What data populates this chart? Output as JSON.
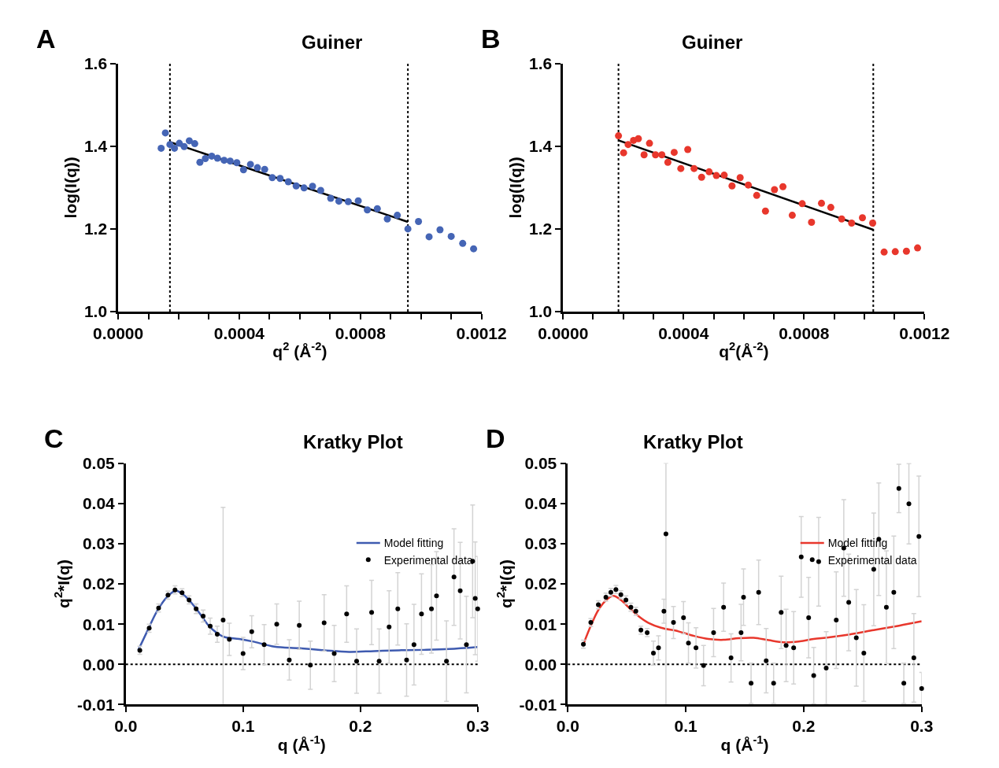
{
  "chart_data": [
    {
      "type": "scatter",
      "title": "Guiner",
      "xlabel": "q$^{2}$ (Å$^{-2}$)",
      "ylabel": "log(I(q))",
      "annotations": [
        "A"
      ],
      "xlim": [
        0,
        0.0012
      ],
      "xticks": [
        {
          "value": 0,
          "label": "0.0000"
        },
        {
          "value": 0.0001,
          "label": null
        },
        {
          "value": 0.0002,
          "label": null
        },
        {
          "value": 0.0003,
          "label": null
        },
        {
          "value": 0.0004,
          "label": "0.0004"
        },
        {
          "value": 0.0005,
          "label": null
        },
        {
          "value": 0.0006,
          "label": null
        },
        {
          "value": 0.0007,
          "label": null
        },
        {
          "value": 0.0008,
          "label": "0.0008"
        },
        {
          "value": 0.0009,
          "label": null
        },
        {
          "value": 0.001,
          "label": null
        },
        {
          "value": 0.0011,
          "label": null
        },
        {
          "value": 0.0012,
          "label": "0.0012"
        }
      ],
      "ylim": [
        1.0,
        1.6
      ],
      "yticks": [
        {
          "value": 1.0,
          "label": "1.0"
        },
        {
          "value": 1.2,
          "label": "1.2"
        },
        {
          "value": 1.4,
          "label": "1.4"
        },
        {
          "value": 1.6,
          "label": "1.6"
        }
      ],
      "grid": false,
      "legend": false,
      "ref_lines": [
        {
          "axis": "x",
          "value": 0.000171,
          "color": "#000000",
          "line_style": "dotted"
        },
        {
          "axis": "x",
          "value": 0.000957,
          "color": "#000000",
          "line_style": "dotted"
        }
      ],
      "series": [
        {
          "marker": "circle",
          "color": "#4565b5",
          "x": [
            0.000142,
            0.000156,
            0.000171,
            0.000186,
            0.000202,
            0.000218,
            0.000235,
            0.000253,
            0.00027,
            0.000288,
            0.000309,
            0.000328,
            0.00035,
            0.00037,
            0.000392,
            0.000414,
            0.000437,
            0.00046,
            0.000484,
            0.000509,
            0.000535,
            0.000562,
            0.000588,
            0.000614,
            0.000642,
            0.000669,
            0.000702,
            0.000729,
            0.00076,
            0.000793,
            0.000823,
            0.000856,
            0.000889,
            0.000922,
            0.000957,
            0.000992,
            0.001027,
            0.001063,
            0.0011,
            0.001138,
            0.001174
          ],
          "values": [
            1.395,
            1.432,
            1.404,
            1.395,
            1.407,
            1.399,
            1.413,
            1.406,
            1.361,
            1.37,
            1.376,
            1.371,
            1.366,
            1.364,
            1.36,
            1.343,
            1.356,
            1.348,
            1.344,
            1.324,
            1.322,
            1.314,
            1.304,
            1.299,
            1.303,
            1.293,
            1.274,
            1.267,
            1.266,
            1.268,
            1.246,
            1.249,
            1.224,
            1.233,
            1.2,
            1.218,
            1.181,
            1.198,
            1.182,
            1.165,
            1.152
          ]
        },
        {
          "type": "line",
          "marker": "none",
          "color": "#000000",
          "x": [
            0.000171,
            0.000957
          ],
          "values": [
            1.41,
            1.217
          ]
        }
      ]
    },
    {
      "type": "scatter",
      "title": "Guiner",
      "xlabel": "q$^{2}$(Å$^{-2}$)",
      "ylabel": "log(I(q))",
      "annotations": [
        "B"
      ],
      "xlim": [
        0,
        0.0012
      ],
      "xticks": [
        {
          "value": 0,
          "label": "0.0000"
        },
        {
          "value": 0.0001,
          "label": null
        },
        {
          "value": 0.0002,
          "label": null
        },
        {
          "value": 0.0003,
          "label": null
        },
        {
          "value": 0.0004,
          "label": "0.0004"
        },
        {
          "value": 0.0005,
          "label": null
        },
        {
          "value": 0.0006,
          "label": null
        },
        {
          "value": 0.0007,
          "label": null
        },
        {
          "value": 0.0008,
          "label": "0.0008"
        },
        {
          "value": 0.0009,
          "label": null
        },
        {
          "value": 0.001,
          "label": null
        },
        {
          "value": 0.0011,
          "label": null
        },
        {
          "value": 0.0012,
          "label": "0.0012"
        }
      ],
      "ylim": [
        1.0,
        1.6
      ],
      "yticks": [
        {
          "value": 1.0,
          "label": "1.0"
        },
        {
          "value": 1.2,
          "label": "1.2"
        },
        {
          "value": 1.4,
          "label": "1.4"
        },
        {
          "value": 1.6,
          "label": "1.6"
        }
      ],
      "grid": false,
      "legend": false,
      "ref_lines": [
        {
          "axis": "x",
          "value": 0.000184,
          "color": "#000000",
          "line_style": "dotted"
        },
        {
          "axis": "x",
          "value": 0.00103,
          "color": "#000000",
          "line_style": "dotted"
        }
      ],
      "series": [
        {
          "marker": "circle",
          "color": "#e8372c",
          "x": [
            0.000184,
            0.000201,
            0.000216,
            0.000234,
            0.00025,
            0.000269,
            0.000287,
            0.000307,
            0.000328,
            0.000348,
            0.000369,
            0.000391,
            0.000414,
            0.000435,
            0.00046,
            0.000485,
            0.000509,
            0.000535,
            0.000561,
            0.000588,
            0.000615,
            0.000643,
            0.000672,
            0.000702,
            0.00073,
            0.000761,
            0.000794,
            0.000825,
            0.000858,
            0.000889,
            0.000925,
            0.000958,
            0.000994,
            0.001028,
            0.001066,
            0.001103,
            0.00114,
            0.001177
          ],
          "values": [
            1.425,
            1.384,
            1.404,
            1.414,
            1.418,
            1.379,
            1.407,
            1.379,
            1.379,
            1.361,
            1.385,
            1.346,
            1.392,
            1.346,
            1.325,
            1.338,
            1.329,
            1.33,
            1.304,
            1.324,
            1.306,
            1.281,
            1.243,
            1.295,
            1.302,
            1.233,
            1.261,
            1.216,
            1.262,
            1.252,
            1.224,
            1.214,
            1.227,
            1.214,
            1.144,
            1.145,
            1.146,
            1.154
          ]
        },
        {
          "type": "line",
          "marker": "none",
          "color": "#000000",
          "x": [
            0.000184,
            0.00103
          ],
          "values": [
            1.414,
            1.198
          ]
        }
      ]
    },
    {
      "type": "scatter",
      "title": "Kratky Plot",
      "xlabel": "q (Å$^{-1}$)",
      "ylabel": "q$^{2}$*I(q)",
      "annotations": [
        "C"
      ],
      "xlim": [
        0,
        0.3
      ],
      "xticks": [
        {
          "value": 0,
          "label": "0.0"
        },
        {
          "value": 0.1,
          "label": "0.1"
        },
        {
          "value": 0.2,
          "label": "0.2"
        },
        {
          "value": 0.3,
          "label": "0.3"
        }
      ],
      "ylim": [
        -0.01,
        0.05
      ],
      "yticks": [
        {
          "value": -0.01,
          "label": "-0.01"
        },
        {
          "value": 0,
          "label": "0.00"
        },
        {
          "value": 0.01,
          "label": "0.01"
        },
        {
          "value": 0.02,
          "label": "0.02"
        },
        {
          "value": 0.03,
          "label": "0.03"
        },
        {
          "value": 0.04,
          "label": "0.04"
        },
        {
          "value": 0.05,
          "label": "0.05"
        }
      ],
      "grid": false,
      "legend": "top right",
      "ref_lines": [
        {
          "axis": "y",
          "value": 0,
          "color": "#000000",
          "line_style": "dotted"
        }
      ],
      "series": [
        {
          "name": "Experimental data",
          "marker": "circle",
          "color": "#000000",
          "x": [
            0.012,
            0.02,
            0.028,
            0.036,
            0.042,
            0.048,
            0.054,
            0.06,
            0.066,
            0.072,
            0.078,
            0.083,
            0.0883,
            0.1,
            0.1074,
            0.118,
            0.1287,
            0.1394,
            0.1479,
            0.1574,
            0.1691,
            0.1777,
            0.1883,
            0.1968,
            0.2096,
            0.216,
            0.2245,
            0.2319,
            0.2394,
            0.2457,
            0.2521,
            0.2606,
            0.2649,
            0.2734,
            0.2798,
            0.2851,
            0.2904,
            0.2957,
            0.2979,
            0.3
          ],
          "values": [
            0.0035,
            0.009,
            0.014,
            0.0172,
            0.0185,
            0.0178,
            0.016,
            0.0138,
            0.012,
            0.0095,
            0.0075,
            0.011,
            0.0062,
            0.0027,
            0.0081,
            0.0049,
            0.01,
            0.0011,
            0.0097,
            -0.0002,
            0.0103,
            0.0027,
            0.0125,
            0.0008,
            0.0129,
            0.0008,
            0.0093,
            0.0138,
            0.0011,
            0.0049,
            0.0125,
            0.0138,
            0.017,
            0.0008,
            0.0217,
            0.0183,
            0.0049,
            0.0256,
            0.0164,
            0.0138
          ],
          "errors": [
            0.001,
            0.001,
            0.001,
            0.001,
            0.001,
            0.001,
            0.001,
            0.0012,
            0.0015,
            0.002,
            0.002,
            [
              -0.01,
              0.039
            ],
            0.004,
            0.004,
            0.004,
            0.005,
            0.005,
            0.005,
            0.006,
            0.006,
            0.007,
            0.007,
            0.007,
            0.008,
            0.008,
            0.008,
            0.009,
            0.009,
            0.009,
            0.01,
            0.01,
            0.011,
            0.011,
            0.01,
            0.012,
            0.012,
            0.012,
            0.014,
            0.014,
            0.013
          ]
        },
        {
          "name": "Model fitting",
          "type": "line",
          "marker": "none",
          "color": "#3f5bb0",
          "x": [
            0.0106,
            0.0181,
            0.0266,
            0.0351,
            0.0426,
            0.05,
            0.0585,
            0.0649,
            0.0713,
            0.0777,
            0.084,
            0.0968,
            0.1096,
            0.1266,
            0.1479,
            0.1691,
            0.1904,
            0.2117,
            0.233,
            0.2543,
            0.2755,
            0.3
          ],
          "values": [
            0.0035,
            0.0081,
            0.0132,
            0.0167,
            0.0183,
            0.0171,
            0.0144,
            0.0119,
            0.0094,
            0.0078,
            0.0068,
            0.0063,
            0.0056,
            0.0044,
            0.004,
            0.0035,
            0.0031,
            0.0033,
            0.0035,
            0.0036,
            0.0038,
            0.0043
          ]
        }
      ]
    },
    {
      "type": "scatter",
      "title": "Kratky Plot",
      "xlabel": "q (Å$^{-1}$)",
      "ylabel": "q$^{2}$*I(q)",
      "annotations": [
        "D"
      ],
      "xlim": [
        0,
        0.3
      ],
      "xticks": [
        {
          "value": 0,
          "label": "0.0"
        },
        {
          "value": 0.1,
          "label": "0.1"
        },
        {
          "value": 0.2,
          "label": "0.2"
        },
        {
          "value": 0.3,
          "label": "0.3"
        }
      ],
      "ylim": [
        -0.01,
        0.05
      ],
      "yticks": [
        {
          "value": -0.01,
          "label": "-0.01"
        },
        {
          "value": 0,
          "label": "0.00"
        },
        {
          "value": 0.01,
          "label": "0.01"
        },
        {
          "value": 0.02,
          "label": "0.02"
        },
        {
          "value": 0.03,
          "label": "0.03"
        },
        {
          "value": 0.04,
          "label": "0.04"
        },
        {
          "value": 0.05,
          "label": "0.05"
        }
      ],
      "grid": false,
      "legend": "top right",
      "ref_lines": [
        {
          "axis": "y",
          "value": 0,
          "color": "#000000",
          "line_style": "dotted"
        }
      ],
      "series": [
        {
          "name": "Experimental data",
          "marker": "circle",
          "color": "#000000",
          "x": [
            0.0132,
            0.0195,
            0.0259,
            0.0323,
            0.0365,
            0.0408,
            0.045,
            0.0493,
            0.0535,
            0.0577,
            0.062,
            0.0673,
            0.0726,
            0.0769,
            0.0815,
            0.0832,
            0.0896,
            0.0981,
            0.1023,
            0.1087,
            0.1151,
            0.1236,
            0.1321,
            0.1384,
            0.1469,
            0.149,
            0.1554,
            0.1618,
            0.1682,
            0.1745,
            0.1809,
            0.1851,
            0.1915,
            0.1979,
            0.2042,
            0.2085,
            0.2127,
            0.2191,
            0.2276,
            0.234,
            0.2382,
            0.2446,
            0.251,
            0.2594,
            0.2637,
            0.2701,
            0.2764,
            0.2807,
            0.2849,
            0.2892,
            0.2934,
            0.2977,
            0.3
          ],
          "values": [
            0.005,
            0.0104,
            0.0148,
            0.0167,
            0.0179,
            0.0186,
            0.0173,
            0.016,
            0.0142,
            0.0132,
            0.0085,
            0.0079,
            0.0028,
            0.0041,
            0.0132,
            0.0324,
            0.0104,
            0.0116,
            0.0053,
            0.0041,
            -0.0003,
            0.0079,
            0.0142,
            0.0016,
            0.0079,
            0.0167,
            -0.0047,
            0.0179,
            0.0009,
            -0.0047,
            0.0129,
            0.0047,
            0.0041,
            0.0267,
            0.0116,
            -0.0028,
            0.0255,
            -0.0009,
            0.011,
            0.0289,
            0.0154,
            0.0066,
            0.0028,
            0.0236,
            0.0311,
            0.0142,
            0.0179,
            0.0437,
            -0.0047,
            0.0399,
            0.0016,
            0.0318,
            -0.006
          ],
          "errors": [
            0.001,
            0.001,
            0.001,
            0.001,
            0.001,
            0.001,
            0.001,
            0.001,
            0.001,
            0.001,
            0.001,
            0.001,
            0.003,
            0.003,
            0.003,
            [
              -0.01,
              0.05
            ],
            0.004,
            0.004,
            0.005,
            0.005,
            0.005,
            0.006,
            0.006,
            0.006,
            0.007,
            0.007,
            0.005,
            0.008,
            0.008,
            0.005,
            0.009,
            0.009,
            0.009,
            0.01,
            0.01,
            0.007,
            0.011,
            0.009,
            0.012,
            0.012,
            0.012,
            0.012,
            0.012,
            0.014,
            0.014,
            0.014,
            0.014,
            0.006,
            0.005,
            0.01,
            0.011,
            0.015,
            0.004
          ]
        },
        {
          "name": "Model fitting",
          "type": "line",
          "marker": "none",
          "color": "#e8372c",
          "x": [
            0.0132,
            0.0195,
            0.0259,
            0.0323,
            0.0386,
            0.045,
            0.0514,
            0.0599,
            0.0684,
            0.079,
            0.0938,
            0.1066,
            0.1193,
            0.1321,
            0.1448,
            0.1575,
            0.1703,
            0.183,
            0.1958,
            0.2085,
            0.2212,
            0.2382,
            0.2594,
            0.2807,
            0.3
          ],
          "values": [
            0.005,
            0.0096,
            0.0135,
            0.0159,
            0.017,
            0.016,
            0.0142,
            0.012,
            0.0103,
            0.0091,
            0.0082,
            0.0071,
            0.0063,
            0.0061,
            0.0065,
            0.0066,
            0.006,
            0.0055,
            0.0057,
            0.0063,
            0.0067,
            0.0074,
            0.0085,
            0.0096,
            0.0107
          ]
        }
      ]
    }
  ]
}
